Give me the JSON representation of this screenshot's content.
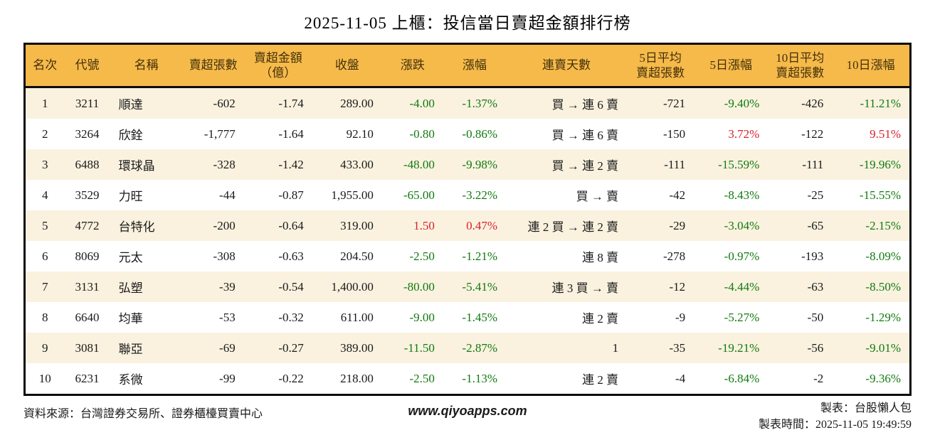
{
  "title": "2025-11-05 上櫃：投信當日賣超金額排行榜",
  "colors": {
    "header_bg": "#f6ba4a",
    "row_odd_bg": "#faf2df",
    "row_even_bg": "#ffffff",
    "header_text": "#43300a",
    "positive_red": "#da202c",
    "negative_green": "#117a11",
    "border": "#0d0d0d"
  },
  "table": {
    "columns": [
      {
        "key": "rank",
        "label": "名次",
        "align": "center"
      },
      {
        "key": "code",
        "label": "代號",
        "align": "center"
      },
      {
        "key": "name",
        "label": "名稱",
        "align": "left"
      },
      {
        "key": "sell_volume",
        "label": "賣超張數",
        "align": "right"
      },
      {
        "key": "sell_amount",
        "label": "賣超金額\n（億）",
        "align": "right"
      },
      {
        "key": "close",
        "label": "收盤",
        "align": "right"
      },
      {
        "key": "change",
        "label": "漲跌",
        "align": "right",
        "colored": true
      },
      {
        "key": "change_pct",
        "label": "漲幅",
        "align": "right",
        "colored": true
      },
      {
        "key": "streak",
        "label": "連賣天數",
        "align": "right"
      },
      {
        "key": "avg5",
        "label": "5日平均\n賣超張數",
        "align": "right"
      },
      {
        "key": "pct5",
        "label": "5日漲幅",
        "align": "right",
        "colored": true
      },
      {
        "key": "avg10",
        "label": "10日平均\n賣超張數",
        "align": "right"
      },
      {
        "key": "pct10",
        "label": "10日漲幅",
        "align": "right",
        "colored": true
      }
    ],
    "rows": [
      {
        "rank": "1",
        "code": "3211",
        "name": "順達",
        "sell_volume": "-602",
        "sell_amount": "-1.74",
        "close": "289.00",
        "change": "-4.00",
        "change_color": "green",
        "change_pct": "-1.37%",
        "change_pct_color": "green",
        "streak": "買 → 連 6 賣",
        "avg5": "-721",
        "pct5": "-9.40%",
        "pct5_color": "green",
        "avg10": "-426",
        "pct10": "-11.21%",
        "pct10_color": "green"
      },
      {
        "rank": "2",
        "code": "3264",
        "name": "欣銓",
        "sell_volume": "-1,777",
        "sell_amount": "-1.64",
        "close": "92.10",
        "change": "-0.80",
        "change_color": "green",
        "change_pct": "-0.86%",
        "change_pct_color": "green",
        "streak": "買 → 連 6 賣",
        "avg5": "-150",
        "pct5": "3.72%",
        "pct5_color": "red",
        "avg10": "-122",
        "pct10": "9.51%",
        "pct10_color": "red"
      },
      {
        "rank": "3",
        "code": "6488",
        "name": "環球晶",
        "sell_volume": "-328",
        "sell_amount": "-1.42",
        "close": "433.00",
        "change": "-48.00",
        "change_color": "green",
        "change_pct": "-9.98%",
        "change_pct_color": "green",
        "streak": "買 → 連 2 賣",
        "avg5": "-111",
        "pct5": "-15.59%",
        "pct5_color": "green",
        "avg10": "-111",
        "pct10": "-19.96%",
        "pct10_color": "green"
      },
      {
        "rank": "4",
        "code": "3529",
        "name": "力旺",
        "sell_volume": "-44",
        "sell_amount": "-0.87",
        "close": "1,955.00",
        "change": "-65.00",
        "change_color": "green",
        "change_pct": "-3.22%",
        "change_pct_color": "green",
        "streak": "買 → 賣",
        "avg5": "-42",
        "pct5": "-8.43%",
        "pct5_color": "green",
        "avg10": "-25",
        "pct10": "-15.55%",
        "pct10_color": "green"
      },
      {
        "rank": "5",
        "code": "4772",
        "name": "台特化",
        "sell_volume": "-200",
        "sell_amount": "-0.64",
        "close": "319.00",
        "change": "1.50",
        "change_color": "red",
        "change_pct": "0.47%",
        "change_pct_color": "red",
        "streak": "連 2 買 → 連 2 賣",
        "avg5": "-29",
        "pct5": "-3.04%",
        "pct5_color": "green",
        "avg10": "-65",
        "pct10": "-2.15%",
        "pct10_color": "green"
      },
      {
        "rank": "6",
        "code": "8069",
        "name": "元太",
        "sell_volume": "-308",
        "sell_amount": "-0.63",
        "close": "204.50",
        "change": "-2.50",
        "change_color": "green",
        "change_pct": "-1.21%",
        "change_pct_color": "green",
        "streak": "連 8 賣",
        "avg5": "-278",
        "pct5": "-0.97%",
        "pct5_color": "green",
        "avg10": "-193",
        "pct10": "-8.09%",
        "pct10_color": "green"
      },
      {
        "rank": "7",
        "code": "3131",
        "name": "弘塑",
        "sell_volume": "-39",
        "sell_amount": "-0.54",
        "close": "1,400.00",
        "change": "-80.00",
        "change_color": "green",
        "change_pct": "-5.41%",
        "change_pct_color": "green",
        "streak": "連 3 買 → 賣",
        "avg5": "-12",
        "pct5": "-4.44%",
        "pct5_color": "green",
        "avg10": "-63",
        "pct10": "-8.50%",
        "pct10_color": "green"
      },
      {
        "rank": "8",
        "code": "6640",
        "name": "均華",
        "sell_volume": "-53",
        "sell_amount": "-0.32",
        "close": "611.00",
        "change": "-9.00",
        "change_color": "green",
        "change_pct": "-1.45%",
        "change_pct_color": "green",
        "streak": "連 2 賣",
        "avg5": "-9",
        "pct5": "-5.27%",
        "pct5_color": "green",
        "avg10": "-50",
        "pct10": "-1.29%",
        "pct10_color": "green"
      },
      {
        "rank": "9",
        "code": "3081",
        "name": "聯亞",
        "sell_volume": "-69",
        "sell_amount": "-0.27",
        "close": "389.00",
        "change": "-11.50",
        "change_color": "green",
        "change_pct": "-2.87%",
        "change_pct_color": "green",
        "streak": "1",
        "avg5": "-35",
        "pct5": "-19.21%",
        "pct5_color": "green",
        "avg10": "-56",
        "pct10": "-9.01%",
        "pct10_color": "green"
      },
      {
        "rank": "10",
        "code": "6231",
        "name": "系微",
        "sell_volume": "-99",
        "sell_amount": "-0.22",
        "close": "218.00",
        "change": "-2.50",
        "change_color": "green",
        "change_pct": "-1.13%",
        "change_pct_color": "green",
        "streak": "連 2 賣",
        "avg5": "-4",
        "pct5": "-6.84%",
        "pct5_color": "green",
        "avg10": "-2",
        "pct10": "-9.36%",
        "pct10_color": "green"
      }
    ]
  },
  "footer": {
    "source": "資料來源：台灣證券交易所、證券櫃檯買賣中心",
    "website": "www.qiyoapps.com",
    "maker": "製表：台股懶人包",
    "made_time": "製表時間：2025-11-05 19:49:59"
  }
}
